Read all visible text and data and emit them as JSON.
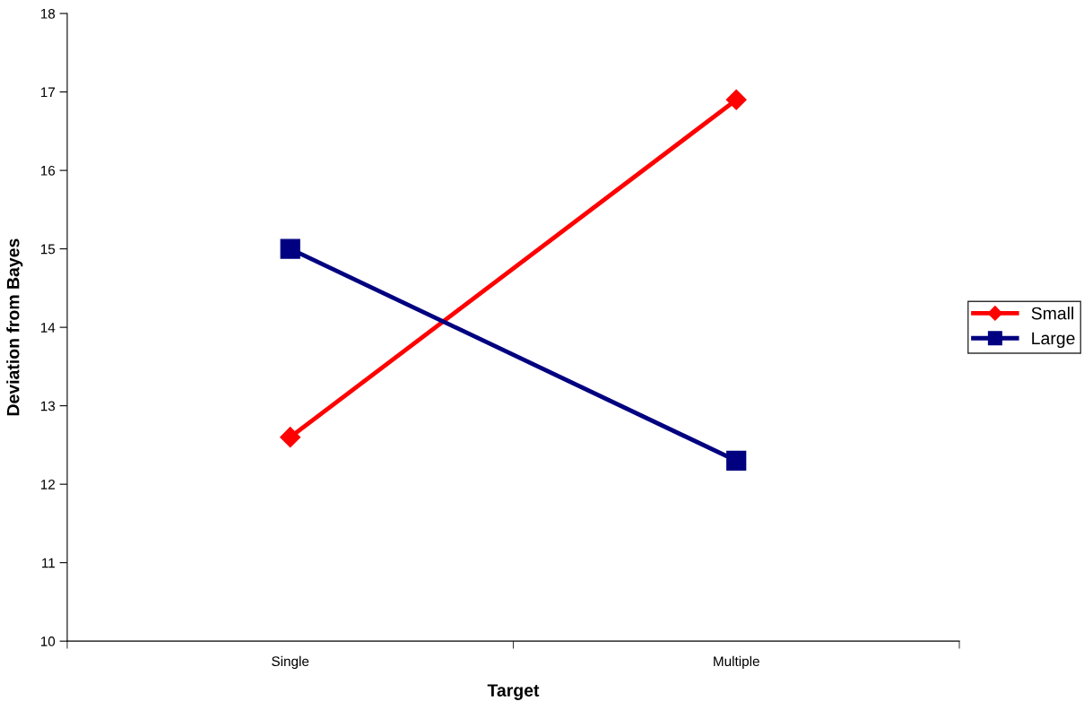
{
  "chart_data": {
    "type": "line",
    "xlabel": "Target",
    "ylabel": "Deviation from Bayes",
    "categories": [
      "Single",
      "Multiple"
    ],
    "series": [
      {
        "name": "Small",
        "color": "#ff0000",
        "values": [
          12.6,
          16.9
        ],
        "marker": "diamond"
      },
      {
        "name": "Large",
        "color": "#000080",
        "values": [
          15.0,
          12.3
        ],
        "marker": "square"
      }
    ],
    "ylim": [
      10,
      18
    ],
    "yticks": [
      10,
      11,
      12,
      13,
      14,
      15,
      16,
      17,
      18
    ],
    "grid": false,
    "legend": "right",
    "line_style": "solid"
  }
}
